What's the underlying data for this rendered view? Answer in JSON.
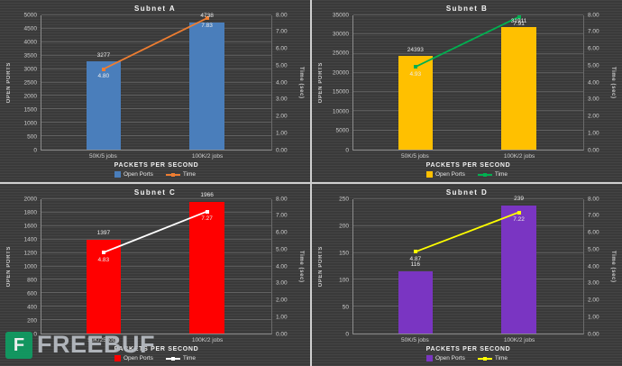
{
  "watermark": {
    "brand": "FREEBUF",
    "icon_color": "#0f9d63"
  },
  "chart_data": [
    {
      "type": "bar",
      "title": "Subnet A",
      "categories": [
        "50K/5 jobs",
        "100K/2 jobs"
      ],
      "xlabel": "PACKETS PER SECOND",
      "ylabel_left": "OPEN PORTS",
      "ylabel_right": "Time (sec)",
      "ylim_left": [
        0,
        5000
      ],
      "ytick_left": 500,
      "ylim_right": [
        0,
        8
      ],
      "ytick_right": 1,
      "grid": true,
      "legend_position": "bottom",
      "series": [
        {
          "name": "Open Ports",
          "kind": "bar",
          "axis": "left",
          "color": "#4a7ebb",
          "values": [
            3277,
            4738
          ],
          "labels": [
            "3277",
            "4738"
          ]
        },
        {
          "name": "Time",
          "kind": "line",
          "axis": "right",
          "color": "#ed7d31",
          "values": [
            4.8,
            7.83
          ],
          "labels": [
            "4.80",
            "7.83"
          ]
        }
      ]
    },
    {
      "type": "bar",
      "title": "Subnet B",
      "categories": [
        "50K/5 jobs",
        "100K/2 jobs"
      ],
      "xlabel": "PACKETS PER SECOND",
      "ylabel_left": "OPEN PORTS",
      "ylabel_right": "Time (sec)",
      "ylim_left": [
        0,
        35000
      ],
      "ytick_left": 5000,
      "ylim_right": [
        0,
        8
      ],
      "ytick_right": 1,
      "grid": true,
      "legend_position": "bottom",
      "series": [
        {
          "name": "Open Ports",
          "kind": "bar",
          "axis": "left",
          "color": "#ffc000",
          "values": [
            24393,
            31911
          ],
          "labels": [
            "24393",
            "31911"
          ]
        },
        {
          "name": "Time",
          "kind": "line",
          "axis": "right",
          "color": "#00b050",
          "values": [
            4.93,
            7.91
          ],
          "labels": [
            "4.93",
            "7.91"
          ]
        }
      ]
    },
    {
      "type": "bar",
      "title": "Subnet C",
      "categories": [
        "50K/25 jobs",
        "100K/2 jobs"
      ],
      "xlabel": "PACKETS PER SECOND",
      "ylabel_left": "OPEN PORTS",
      "ylabel_right": "Time (sec)",
      "ylim_left": [
        0,
        2000
      ],
      "ytick_left": 200,
      "ylim_right": [
        0,
        8
      ],
      "ytick_right": 1,
      "grid": true,
      "legend_position": "bottom",
      "series": [
        {
          "name": "Open Ports",
          "kind": "bar",
          "axis": "left",
          "color": "#ff0000",
          "values": [
            1397,
            1966
          ],
          "labels": [
            "1397",
            "1966"
          ]
        },
        {
          "name": "Time",
          "kind": "line",
          "axis": "right",
          "color": "#ffffff",
          "values": [
            4.83,
            7.27
          ],
          "labels": [
            "4.83",
            "7.27"
          ]
        }
      ]
    },
    {
      "type": "bar",
      "title": "Subnet D",
      "categories": [
        "50K/5 jobs",
        "100K/2 jobs"
      ],
      "xlabel": "PACKETS PER SECOND",
      "ylabel_left": "OPEN PORTS",
      "ylabel_right": "Time (sec)",
      "ylim_left": [
        0,
        250
      ],
      "ytick_left": 50,
      "ylim_right": [
        0,
        8
      ],
      "ytick_right": 1,
      "grid": true,
      "legend_position": "bottom",
      "series": [
        {
          "name": "Open Ports",
          "kind": "bar",
          "axis": "left",
          "color": "#7a35c2",
          "values": [
            116,
            239
          ],
          "labels": [
            "116",
            "239"
          ]
        },
        {
          "name": "Time",
          "kind": "line",
          "axis": "right",
          "color": "#ffff00",
          "values": [
            4.87,
            7.22
          ],
          "labels": [
            "4.87",
            "7.22"
          ]
        }
      ]
    }
  ]
}
